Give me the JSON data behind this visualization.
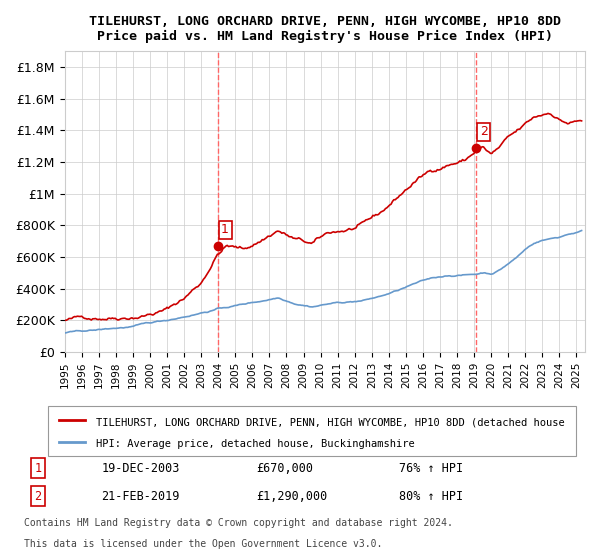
{
  "title": "TILEHURST, LONG ORCHARD DRIVE, PENN, HIGH WYCOMBE, HP10 8DD",
  "subtitle": "Price paid vs. HM Land Registry's House Price Index (HPI)",
  "xlim_start": 1995.0,
  "xlim_end": 2025.5,
  "ylim": [
    0,
    1900000
  ],
  "yticks": [
    0,
    200000,
    400000,
    600000,
    800000,
    1000000,
    1200000,
    1400000,
    1600000,
    1800000
  ],
  "ytick_labels": [
    "£0",
    "£200K",
    "£400K",
    "£600K",
    "£800K",
    "£1M",
    "£1.2M",
    "£1.4M",
    "£1.6M",
    "£1.8M"
  ],
  "xtick_years": [
    1995,
    1996,
    1997,
    1998,
    1999,
    2000,
    2001,
    2002,
    2003,
    2004,
    2005,
    2006,
    2007,
    2008,
    2009,
    2010,
    2011,
    2012,
    2013,
    2014,
    2015,
    2016,
    2017,
    2018,
    2019,
    2020,
    2021,
    2022,
    2023,
    2024,
    2025
  ],
  "sale1_x": 2003.97,
  "sale1_y": 670000,
  "sale1_label": "1",
  "sale1_date": "19-DEC-2003",
  "sale1_price": "£670,000",
  "sale1_hpi": "76% ↑ HPI",
  "sale2_x": 2019.13,
  "sale2_y": 1290000,
  "sale2_label": "2",
  "sale2_date": "21-FEB-2019",
  "sale2_price": "£1,290,000",
  "sale2_hpi": "80% ↑ HPI",
  "red_line_color": "#cc0000",
  "blue_line_color": "#6699cc",
  "vline_color": "#ff6666",
  "legend_text1": "TILEHURST, LONG ORCHARD DRIVE, PENN, HIGH WYCOMBE, HP10 8DD (detached house",
  "legend_text2": "HPI: Average price, detached house, Buckinghamshire",
  "footer1": "Contains HM Land Registry data © Crown copyright and database right 2024.",
  "footer2": "This data is licensed under the Open Government Licence v3.0.",
  "background_color": "#ffffff",
  "grid_color": "#cccccc"
}
